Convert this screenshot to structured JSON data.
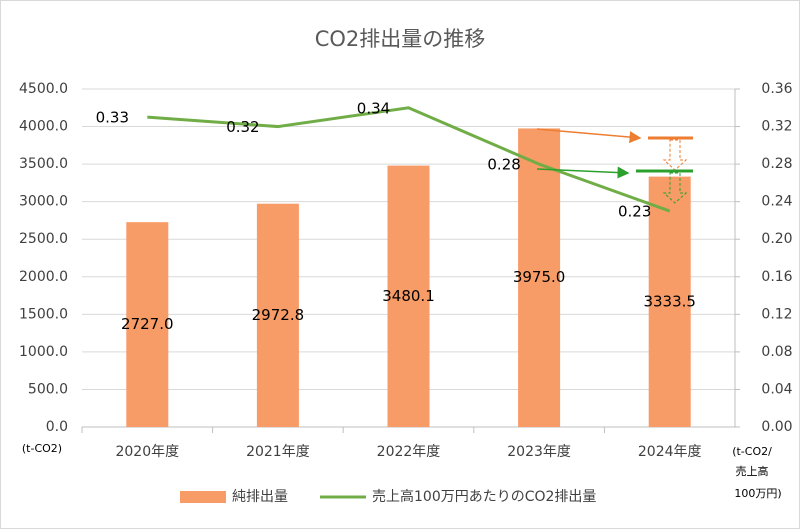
{
  "chart_data": {
    "type": "bar-line",
    "title": "CO2排出量の推移",
    "categories": [
      "2020年度",
      "2021年度",
      "2022年度",
      "2023年度",
      "2024年度"
    ],
    "series": [
      {
        "name": "純排出量",
        "type": "bar",
        "color": "#f79b67",
        "values": [
          2727.0,
          2972.8,
          3480.1,
          3975.0,
          3333.5
        ],
        "value_labels": [
          "2727.0",
          "2972.8",
          "3480.1",
          "3975.0",
          "3333.5"
        ]
      },
      {
        "name": "売上高100万円あたりのCO2排出量",
        "type": "line",
        "axis": "y2",
        "color": "#70ad47",
        "values": [
          0.33,
          0.32,
          0.34,
          0.28,
          0.23
        ]
      }
    ],
    "ylim": [
      0,
      4500
    ],
    "yticks": [
      {
        "value": 0,
        "label": "0.0"
      },
      {
        "value": 500,
        "label": "500.0"
      },
      {
        "value": 1000,
        "label": "1000.0"
      },
      {
        "value": 1500,
        "label": "1500.0"
      },
      {
        "value": 2000,
        "label": "2000.0"
      },
      {
        "value": 2500,
        "label": "2500.0"
      },
      {
        "value": 3000,
        "label": "3000.0"
      },
      {
        "value": 3500,
        "label": "3500.0"
      },
      {
        "value": 4000,
        "label": "4000.0"
      },
      {
        "value": 4500,
        "label": "4500.0"
      }
    ],
    "y2lim": [
      0,
      0.36
    ],
    "y2ticks": [
      {
        "value": 0,
        "label": "0.00"
      },
      0.04,
      0.08,
      0.12,
      0.16,
      {
        "value": 0.2,
        "label": "0.20"
      },
      0.24,
      0.28,
      0.32,
      0.36
    ],
    "y_unit": "(t-CO2)",
    "y2_unit_lines": [
      "(t-CO2/",
      "売上高",
      "100万円)"
    ],
    "grid": true,
    "legend": "bottom"
  }
}
